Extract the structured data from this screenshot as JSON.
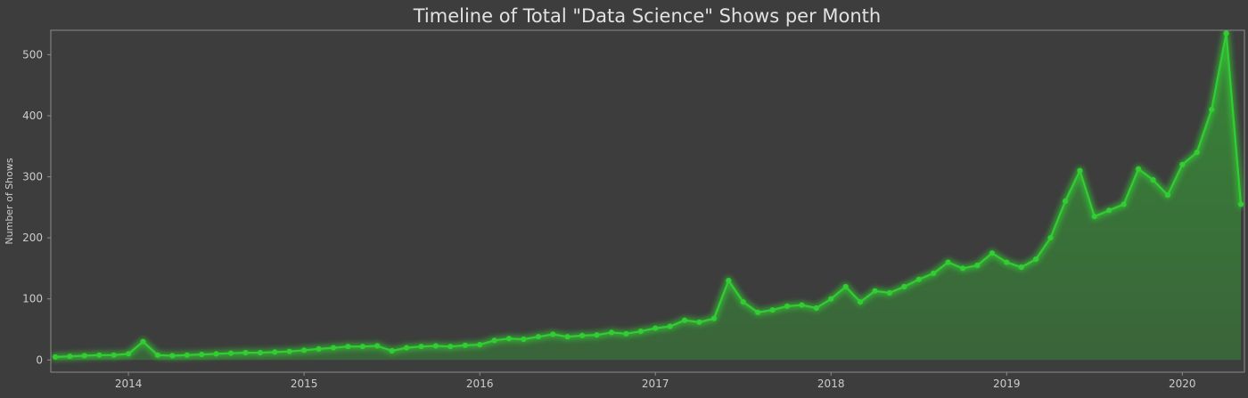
{
  "chart_data": {
    "type": "line",
    "title": "Timeline of Total \"Data Science\" Shows per Month",
    "xlabel": "",
    "ylabel": "Number of Shows",
    "fill": true,
    "markers": true,
    "grid": false,
    "legend": null,
    "glow_effect": true,
    "y_ticks": [
      0,
      100,
      200,
      300,
      400,
      500
    ],
    "x_tick_labels": [
      "2014",
      "2015",
      "2016",
      "2017",
      "2018",
      "2019",
      "2020"
    ],
    "ylim": [
      -20,
      540
    ],
    "colors": {
      "background": "#3d3d3d",
      "line": "#32cd32",
      "spine": "#8c8c8c",
      "text": "#e2e2e2",
      "tick_text": "#cccccc"
    },
    "series": [
      {
        "months": [
          "2013-08",
          "2013-09",
          "2013-10",
          "2013-11",
          "2013-12",
          "2014-01",
          "2014-02",
          "2014-03",
          "2014-04",
          "2014-05",
          "2014-06",
          "2014-07",
          "2014-08",
          "2014-09",
          "2014-10",
          "2014-11",
          "2014-12",
          "2015-01",
          "2015-02",
          "2015-03",
          "2015-04",
          "2015-05",
          "2015-06",
          "2015-07",
          "2015-08",
          "2015-09",
          "2015-10",
          "2015-11",
          "2015-12",
          "2016-01",
          "2016-02",
          "2016-03",
          "2016-04",
          "2016-05",
          "2016-06",
          "2016-07",
          "2016-08",
          "2016-09",
          "2016-10",
          "2016-11",
          "2016-12",
          "2017-01",
          "2017-02",
          "2017-03",
          "2017-04",
          "2017-05",
          "2017-06",
          "2017-07",
          "2017-08",
          "2017-09",
          "2017-10",
          "2017-11",
          "2017-12",
          "2018-01",
          "2018-02",
          "2018-03",
          "2018-04",
          "2018-05",
          "2018-06",
          "2018-07",
          "2018-08",
          "2018-09",
          "2018-10",
          "2018-11",
          "2018-12",
          "2019-01",
          "2019-02",
          "2019-03",
          "2019-04",
          "2019-05",
          "2019-06",
          "2019-07",
          "2019-08",
          "2019-09",
          "2019-10",
          "2019-11",
          "2019-12",
          "2020-01",
          "2020-02",
          "2020-03",
          "2020-04",
          "2020-05"
        ],
        "values": [
          5,
          6,
          7,
          8,
          8,
          10,
          30,
          8,
          7,
          8,
          9,
          10,
          11,
          12,
          12,
          13,
          14,
          16,
          18,
          20,
          22,
          22,
          23,
          15,
          20,
          22,
          23,
          22,
          24,
          25,
          32,
          35,
          34,
          38,
          42,
          38,
          40,
          41,
          45,
          43,
          47,
          52,
          55,
          65,
          62,
          68,
          130,
          95,
          78,
          82,
          88,
          90,
          85,
          100,
          120,
          95,
          113,
          110,
          120,
          132,
          142,
          160,
          150,
          155,
          175,
          160,
          152,
          165,
          200,
          260,
          310,
          235,
          245,
          255,
          313,
          295,
          270,
          320,
          340,
          410,
          535,
          255
        ]
      }
    ]
  }
}
